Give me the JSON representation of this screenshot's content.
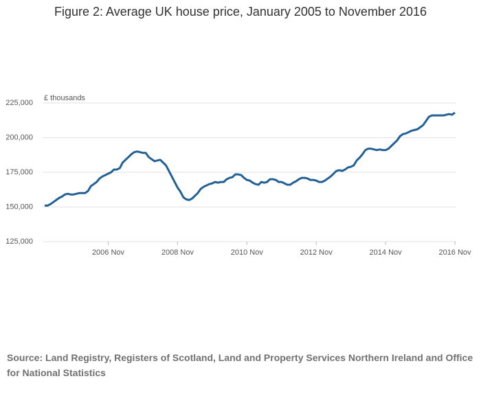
{
  "chart_data": {
    "type": "line",
    "title": "Figure 2: Average UK house price, January 2005 to November 2016",
    "y_label": "£ thousands",
    "source": "Source: Land Registry, Registers of Scotland, Land and Property Services Northern Ireland and Office for National Statistics",
    "categories": [
      null,
      null,
      null,
      null,
      null,
      null,
      null,
      null,
      null,
      null,
      null,
      null,
      null,
      null,
      null,
      null,
      null,
      null,
      null,
      null,
      null,
      null,
      "2006 Nov",
      null,
      null,
      null,
      null,
      null,
      null,
      null,
      null,
      null,
      null,
      null,
      null,
      null,
      null,
      null,
      null,
      null,
      null,
      null,
      null,
      null,
      null,
      null,
      "2008 Nov",
      null,
      null,
      null,
      null,
      null,
      null,
      null,
      null,
      null,
      null,
      null,
      null,
      null,
      null,
      null,
      null,
      null,
      null,
      null,
      null,
      null,
      null,
      null,
      "2010 Nov",
      null,
      null,
      null,
      null,
      null,
      null,
      null,
      null,
      null,
      null,
      null,
      null,
      null,
      null,
      null,
      null,
      null,
      null,
      null,
      null,
      null,
      null,
      null,
      "2012 Nov",
      null,
      null,
      null,
      null,
      null,
      null,
      null,
      null,
      null,
      null,
      null,
      null,
      null,
      null,
      null,
      null,
      null,
      null,
      null,
      null,
      null,
      null,
      null,
      "2014 Nov",
      null,
      null,
      null,
      null,
      null,
      null,
      null,
      null,
      null,
      null,
      null,
      null,
      null,
      null,
      null,
      null,
      null,
      null,
      null,
      null,
      null,
      null,
      null,
      "2016 Nov"
    ],
    "series": [
      {
        "name": "Average UK house price",
        "color": "#206095",
        "values": [
          151000,
          151000,
          152000,
          153500,
          155000,
          156500,
          157500,
          159000,
          159500,
          159000,
          159000,
          159500,
          160000,
          160000,
          160000,
          161500,
          165000,
          166500,
          168000,
          170500,
          172000,
          173000,
          174000,
          175000,
          177000,
          177000,
          178000,
          182000,
          184000,
          186000,
          188000,
          189500,
          190000,
          189500,
          189000,
          189000,
          186000,
          184500,
          183000,
          183500,
          184000,
          182000,
          180000,
          176000,
          172000,
          168000,
          164000,
          161000,
          157000,
          155500,
          155000,
          156000,
          158000,
          160000,
          163000,
          164500,
          165500,
          166500,
          167000,
          168000,
          167500,
          168000,
          168000,
          170000,
          171000,
          171500,
          173500,
          173500,
          173000,
          171000,
          169500,
          169000,
          167500,
          166500,
          166000,
          168000,
          167500,
          168000,
          170000,
          170000,
          169500,
          168000,
          168000,
          167000,
          166000,
          166000,
          167500,
          168500,
          170000,
          171000,
          171000,
          170500,
          169500,
          169500,
          169000,
          168000,
          168000,
          169000,
          170500,
          172000,
          174000,
          176000,
          176500,
          176000,
          177000,
          178500,
          179000,
          180000,
          183500,
          185500,
          188000,
          191000,
          192000,
          192000,
          191500,
          191000,
          191500,
          191000,
          191000,
          192000,
          194000,
          196000,
          198000,
          201000,
          202500,
          203000,
          204000,
          205000,
          205500,
          206000,
          207500,
          209000,
          212000,
          215000,
          216000,
          216000,
          216000,
          216000,
          216000,
          216500,
          217000,
          216500,
          218000
        ]
      }
    ],
    "ylim": [
      125000,
      225000
    ],
    "yticks": [
      {
        "value": 125000,
        "label": "125,000"
      },
      {
        "value": 150000,
        "label": "150,000"
      },
      {
        "value": 175000,
        "label": "175,000"
      },
      {
        "value": 200000,
        "label": "200,000"
      },
      {
        "value": 225000,
        "label": "225,000"
      }
    ],
    "grid": true
  }
}
